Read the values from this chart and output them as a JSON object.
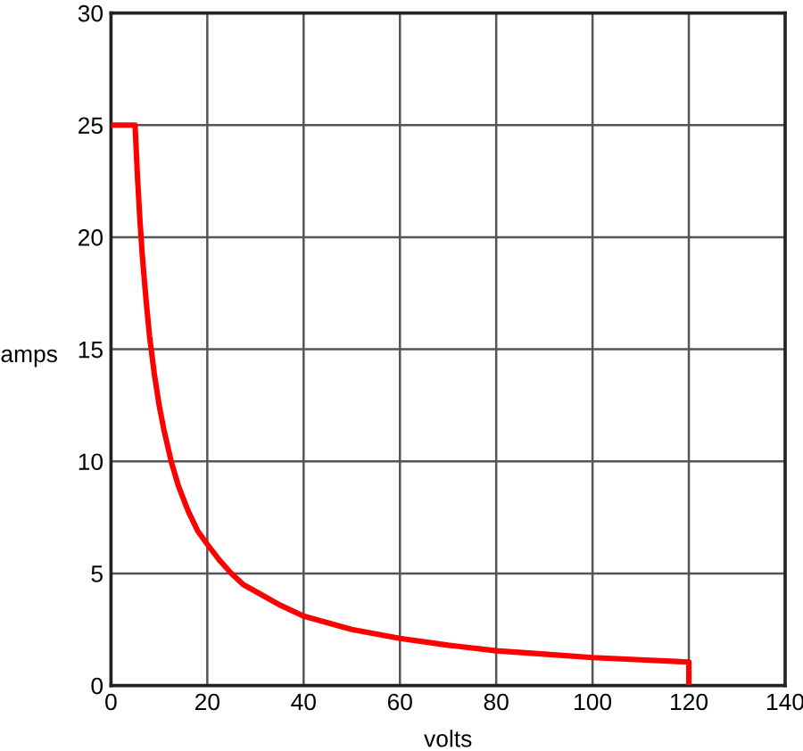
{
  "chart_data": {
    "type": "line",
    "xlabel": "volts",
    "ylabel": "amps",
    "x": [
      0,
      5,
      5.5,
      6,
      6.5,
      7,
      7.5,
      8,
      9,
      10,
      11,
      12.5,
      14,
      16,
      18,
      20,
      22.5,
      25,
      27.5,
      30,
      35,
      40,
      45,
      50,
      60,
      70,
      80,
      90,
      100,
      110,
      120,
      120
    ],
    "series": [
      {
        "color": "#ff0000",
        "values": [
          25,
          25,
          22.7,
          20.8,
          19.2,
          17.9,
          16.7,
          15.6,
          13.9,
          12.5,
          11.4,
          10,
          8.9,
          7.8,
          6.9,
          6.3,
          5.6,
          5,
          4.5,
          4.2,
          3.6,
          3.1,
          2.8,
          2.5,
          2.1,
          1.8,
          1.55,
          1.4,
          1.25,
          1.15,
          1.05,
          0
        ]
      }
    ],
    "xlim": [
      0,
      140
    ],
    "ylim": [
      0,
      30
    ],
    "xticks": [
      0,
      20,
      40,
      60,
      80,
      100,
      120,
      140
    ],
    "yticks": [
      0,
      5,
      10,
      15,
      20,
      25,
      30
    ],
    "grid": true
  }
}
